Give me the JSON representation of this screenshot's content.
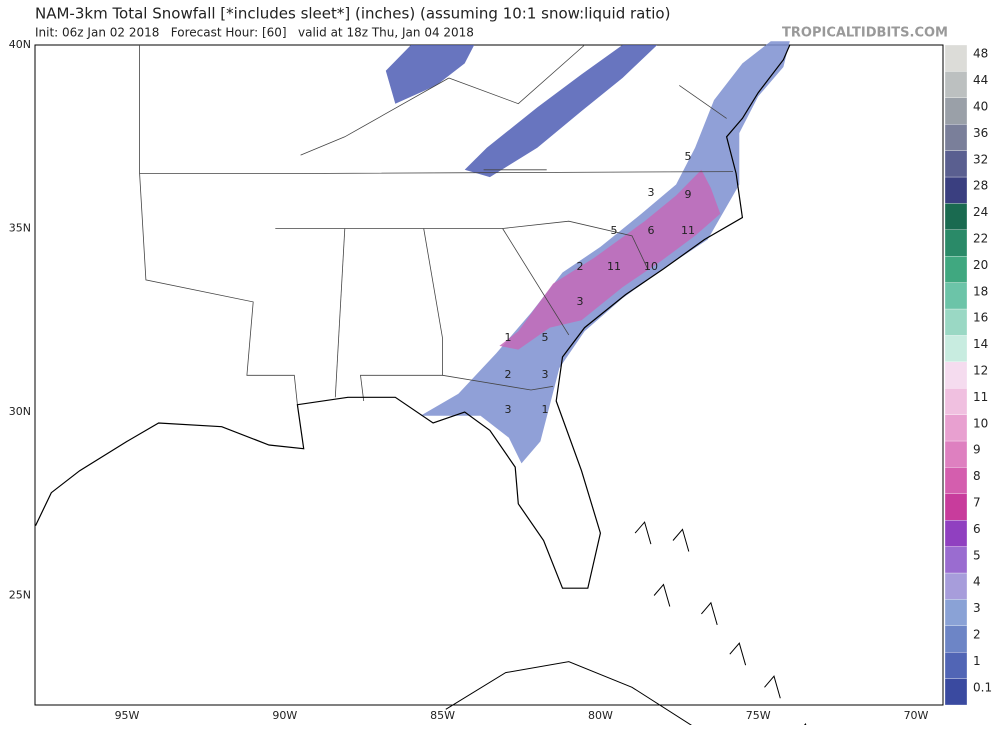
{
  "header": {
    "title": "NAM-3km Total Snowfall [*includes sleet*] (inches) (assuming 10:1 snow:liquid ratio)",
    "subtitle": "Init: 06z Jan 02 2018   Forecast Hour: [60]   valid at 18z Thu, Jan 04 2018",
    "brand": "TROPICALTIDBITS.COM"
  },
  "map": {
    "lat_labels": [
      "40N",
      "35N",
      "30N",
      "25N"
    ],
    "lon_labels": [
      "95W",
      "90W",
      "85W",
      "80W",
      "75W",
      "70W"
    ],
    "annotations": [
      5,
      3,
      9,
      6,
      11,
      5,
      2,
      11,
      10,
      3,
      1,
      5,
      2,
      3,
      3,
      1
    ]
  },
  "legend": {
    "labels": [
      0.1,
      1,
      2,
      3,
      4,
      5,
      6,
      7,
      8,
      9,
      10,
      11,
      12,
      14,
      16,
      18,
      20,
      22,
      24,
      28,
      32,
      36,
      40,
      44,
      48
    ],
    "colors": [
      "#3a4aa0",
      "#5165b5",
      "#6d85c6",
      "#8aa2d6",
      "#a79ddb",
      "#9a6cd0",
      "#9040c0",
      "#c83c9c",
      "#d45eae",
      "#de80c0",
      "#e8a0d0",
      "#f0c0e0",
      "#f5dcef",
      "#c8ece0",
      "#9ad8c4",
      "#6cc4a8",
      "#40a880",
      "#2a8a68",
      "#1a6a50",
      "#3a3f80",
      "#5a5f90",
      "#7a7f9a",
      "#9aa0a8",
      "#bcc0c0",
      "#dcdcd8"
    ]
  }
}
